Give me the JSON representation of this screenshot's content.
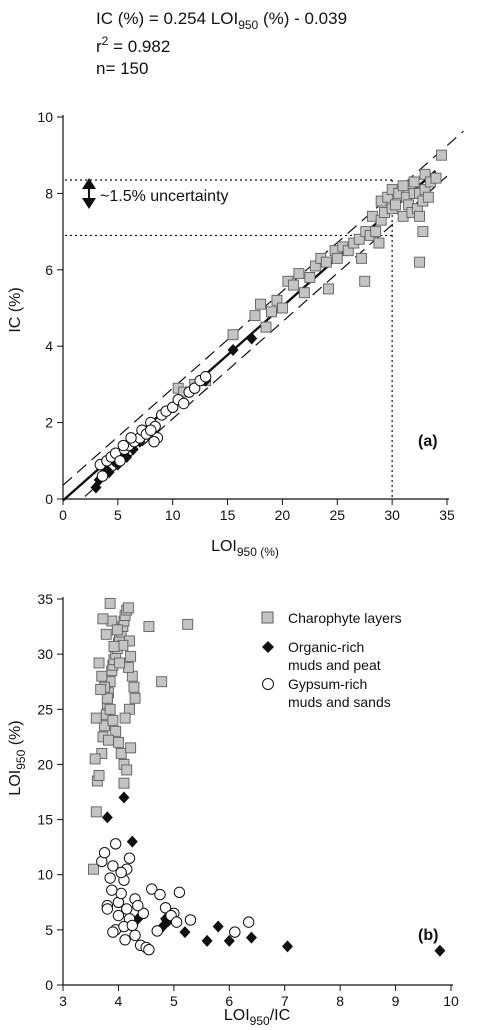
{
  "equation": {
    "line1_prefix": "IC (%) = 0.254 LOI",
    "line1_sub": "950",
    "line1_suffix": " (%) - 0.039",
    "r2_prefix": "r",
    "r2_sup": "2",
    "r2_suffix": " = 0.982",
    "n": "n= 150"
  },
  "chart_data": [
    {
      "type": "scatter",
      "panel_label": "(a)",
      "xlabel_main": "LOI",
      "xlabel_sub": "950 (%)",
      "ylabel": "IC (%)",
      "xlim": [
        0,
        35
      ],
      "ylim": [
        0,
        10
      ],
      "xticks": [
        0,
        5,
        10,
        15,
        20,
        25,
        30,
        35
      ],
      "yticks": [
        0,
        2,
        4,
        6,
        8,
        10
      ],
      "grid": false,
      "annotation": "~1.5% uncertainty",
      "regression": {
        "slope": 0.254,
        "intercept": -0.039,
        "style": "solid"
      },
      "bounds": [
        {
          "slope": 0.254,
          "intercept": 0.36,
          "style": "dashed"
        },
        {
          "slope": 0.254,
          "intercept": -0.44,
          "style": "dashed"
        }
      ],
      "reference_lines": {
        "x": 30,
        "y_values": [
          6.9,
          8.35
        ]
      },
      "series": [
        {
          "marker": "square",
          "x": [
            10.5,
            11,
            12,
            13,
            15.5,
            17.5,
            18,
            18.5,
            19,
            19.5,
            20,
            20.5,
            21,
            21.5,
            22,
            22.5,
            23,
            23.5,
            24,
            24.2,
            24.8,
            25,
            25.5,
            26,
            26.5,
            27,
            27.2,
            27.6,
            28,
            28.2,
            28.5,
            28.8,
            29,
            29,
            29.3,
            29.6,
            30,
            30,
            30.3,
            30.6,
            31,
            31,
            31.3,
            31.5,
            31.8,
            32,
            32,
            32.3,
            32.5,
            32.5,
            32.8,
            33,
            33,
            33.3,
            33.5,
            34,
            34.5,
            32.5,
            27.5,
            32.8
          ],
          "y": [
            2.9,
            2.8,
            3.0,
            3.1,
            4.3,
            4.8,
            5.1,
            4.5,
            4.9,
            5.2,
            5.0,
            5.7,
            5.6,
            5.9,
            5.4,
            5.8,
            6.1,
            6.3,
            6.2,
            5.5,
            6.5,
            6.3,
            6.6,
            6.5,
            6.7,
            6.8,
            6.3,
            7.0,
            6.9,
            7.4,
            7.0,
            6.7,
            7.3,
            7.8,
            7.5,
            7.9,
            8.1,
            7.6,
            7.7,
            8.0,
            7.4,
            8.2,
            7.9,
            7.7,
            7.5,
            8.0,
            8.3,
            7.6,
            8.0,
            7.4,
            7.8,
            8.1,
            8.5,
            7.9,
            8.3,
            8.4,
            9.0,
            6.2,
            5.7,
            7.0
          ]
        },
        {
          "marker": "diamond",
          "x": [
            3,
            3.3,
            3.8,
            4.2,
            4.6,
            5,
            5.4,
            5.8,
            6.4,
            7,
            15.5,
            17.2,
            13
          ],
          "y": [
            0.3,
            0.5,
            0.8,
            0.7,
            1.0,
            0.9,
            1.2,
            1.1,
            1.3,
            1.5,
            3.9,
            4.2,
            3.1
          ],
          "filled": true
        },
        {
          "marker": "circle",
          "x": [
            3.4,
            3.6,
            4,
            4.4,
            4.8,
            5.2,
            5.6,
            6,
            6.5,
            7,
            7.2,
            7.6,
            8,
            8.4,
            8.6,
            9,
            9.4,
            10,
            10.5,
            11,
            11.5,
            12,
            12.5,
            13,
            8,
            8.3,
            5.5,
            6.2
          ],
          "y": [
            0.9,
            0.6,
            1.0,
            1.1,
            1.2,
            1.0,
            1.3,
            1.4,
            1.5,
            1.6,
            1.8,
            1.7,
            2.0,
            1.9,
            1.6,
            2.2,
            2.3,
            2.4,
            2.6,
            2.5,
            2.8,
            2.9,
            3.1,
            3.2,
            1.8,
            1.5,
            1.4,
            1.6
          ],
          "filled": false
        }
      ]
    },
    {
      "type": "scatter",
      "panel_label": "(b)",
      "xlabel_main": "LOI",
      "xlabel_sub": "950",
      "xlabel_suffix": "/IC",
      "ylabel_main": "LOI",
      "ylabel_sub": "950",
      "ylabel_suffix": " (%)",
      "xlim": [
        3,
        10
      ],
      "ylim": [
        0,
        35
      ],
      "xticks": [
        3,
        4,
        5,
        6,
        7,
        8,
        9,
        10
      ],
      "yticks": [
        0,
        5,
        10,
        15,
        20,
        25,
        30,
        35
      ],
      "grid": false,
      "legend_position": "top-right",
      "series": [
        {
          "name": "Charophyte layers",
          "marker": "square",
          "x": [
            3.55,
            3.6,
            3.62,
            3.65,
            3.7,
            3.72,
            3.75,
            3.78,
            3.8,
            3.82,
            3.85,
            3.88,
            3.9,
            3.92,
            3.95,
            3.98,
            4.0,
            4.02,
            4.05,
            4.08,
            4.1,
            4.12,
            4.15,
            4.18,
            4.2,
            4.22,
            4.25,
            4.28,
            4.3,
            3.65,
            3.7,
            3.75,
            3.8,
            3.85,
            3.9,
            3.95,
            4.0,
            4.05,
            4.1,
            4.15,
            4.2,
            3.78,
            3.88,
            3.98,
            4.08,
            4.18,
            3.6,
            3.58,
            3.68,
            4.1,
            4.55,
            5.25,
            4.78,
            3.85,
            3.92,
            4.02,
            3.72,
            3.82,
            4.12,
            4.22
          ],
          "y": [
            10.5,
            15.7,
            18.5,
            19.0,
            21.0,
            22.5,
            23.5,
            24.5,
            25.5,
            26.5,
            27.5,
            28.5,
            29.0,
            29.5,
            30.0,
            30.5,
            31.0,
            31.5,
            32.0,
            32.5,
            33.0,
            33.5,
            34.0,
            34.2,
            31.2,
            29.8,
            28.0,
            27.0,
            26.0,
            29.2,
            28.0,
            27.0,
            26.0,
            25.0,
            24.0,
            23.0,
            22.0,
            21.0,
            20.0,
            19.5,
            25.0,
            31.8,
            33.0,
            32.2,
            30.8,
            28.8,
            24.2,
            20.5,
            26.8,
            18.3,
            32.5,
            32.7,
            27.5,
            34.6,
            30.7,
            29.2,
            33.2,
            22.2,
            24.2,
            21.5
          ]
        },
        {
          "name": "Organic-rich muds and peat",
          "marker": "diamond",
          "x": [
            3.8,
            4.1,
            4.25,
            4.35,
            4.8,
            4.85,
            5.2,
            5.6,
            5.8,
            6.0,
            6.4,
            7.05,
            9.8,
            4.9
          ],
          "y": [
            15.2,
            17.0,
            13.0,
            6.0,
            5.3,
            6.0,
            4.8,
            4.0,
            5.3,
            4.0,
            4.3,
            3.5,
            3.1,
            5.8
          ],
          "filled": true
        },
        {
          "name": "Gypsum-rich muds and sands",
          "marker": "circle",
          "x": [
            3.7,
            3.75,
            3.8,
            3.85,
            3.9,
            3.95,
            4.0,
            4.05,
            4.1,
            4.15,
            4.2,
            4.3,
            4.4,
            4.5,
            4.6,
            4.75,
            4.85,
            5.0,
            5.1,
            5.3,
            3.8,
            3.9,
            4.0,
            4.1,
            4.2,
            4.3,
            4.45,
            4.55,
            3.95,
            4.05,
            4.25,
            4.35,
            4.7,
            4.95,
            5.05,
            6.1,
            6.35,
            4.15,
            3.88,
            4.12
          ],
          "y": [
            11.2,
            12.0,
            7.2,
            9.7,
            10.8,
            5.0,
            7.5,
            8.3,
            9.5,
            10.5,
            6.0,
            4.5,
            3.6,
            3.4,
            8.7,
            8.2,
            7.0,
            6.5,
            8.4,
            5.9,
            6.9,
            4.8,
            6.3,
            5.3,
            11.5,
            7.8,
            6.5,
            3.2,
            12.8,
            10.2,
            5.4,
            7.2,
            4.9,
            6.3,
            5.7,
            4.8,
            5.7,
            6.9,
            8.6,
            4.1
          ],
          "filled": false
        }
      ]
    }
  ],
  "colors": {
    "square_fill": "#c4c4c4",
    "square_stroke": "#5f5f5f",
    "ink": "#111111"
  }
}
